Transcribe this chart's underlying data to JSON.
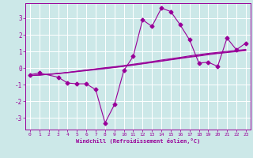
{
  "xlabel": "Windchill (Refroidissement éolien,°C)",
  "xlim": [
    -0.5,
    23.5
  ],
  "ylim": [
    -3.7,
    3.9
  ],
  "yticks": [
    -3,
    -2,
    -1,
    0,
    1,
    2,
    3
  ],
  "xticks": [
    0,
    1,
    2,
    3,
    4,
    5,
    6,
    7,
    8,
    9,
    10,
    11,
    12,
    13,
    14,
    15,
    16,
    17,
    18,
    19,
    20,
    21,
    22,
    23
  ],
  "bg_color": "#cce8e8",
  "line_color": "#990099",
  "grid_color": "#ffffff",
  "line1_y": [
    -0.4,
    -0.3,
    -0.55,
    -0.9,
    -0.95,
    -0.95,
    -1.3,
    -3.3,
    -2.2,
    -0.15,
    0.7,
    2.9,
    2.5,
    3.6,
    3.4,
    2.6,
    1.7,
    0.3,
    0.35,
    0.1,
    1.8,
    1.1,
    1.5
  ],
  "line1_x": [
    0,
    1,
    3,
    4,
    5,
    6,
    7,
    8,
    9,
    10,
    11,
    12,
    13,
    14,
    15,
    16,
    17,
    18,
    19,
    20,
    21,
    22,
    23
  ],
  "line2_y": [
    -0.45,
    -0.42,
    -0.38,
    -0.34,
    -0.28,
    -0.22,
    -0.16,
    -0.1,
    -0.04,
    0.03,
    0.1,
    0.17,
    0.25,
    0.33,
    0.41,
    0.49,
    0.57,
    0.65,
    0.72,
    0.8,
    0.87,
    0.93,
    0.99,
    1.05
  ],
  "line3_y": [
    -0.45,
    -0.42,
    -0.38,
    -0.33,
    -0.27,
    -0.2,
    -0.13,
    -0.07,
    -0.01,
    0.05,
    0.12,
    0.19,
    0.27,
    0.35,
    0.43,
    0.52,
    0.6,
    0.68,
    0.76,
    0.84,
    0.9,
    0.96,
    1.02,
    1.08
  ],
  "line4_y": [
    -0.45,
    -0.42,
    -0.37,
    -0.32,
    -0.26,
    -0.19,
    -0.12,
    -0.05,
    0.02,
    0.08,
    0.15,
    0.23,
    0.31,
    0.39,
    0.48,
    0.56,
    0.64,
    0.73,
    0.81,
    0.88,
    0.94,
    1.0,
    1.06,
    1.12
  ],
  "marker_style": "D",
  "marker_size": 2.5,
  "line_width": 0.8
}
